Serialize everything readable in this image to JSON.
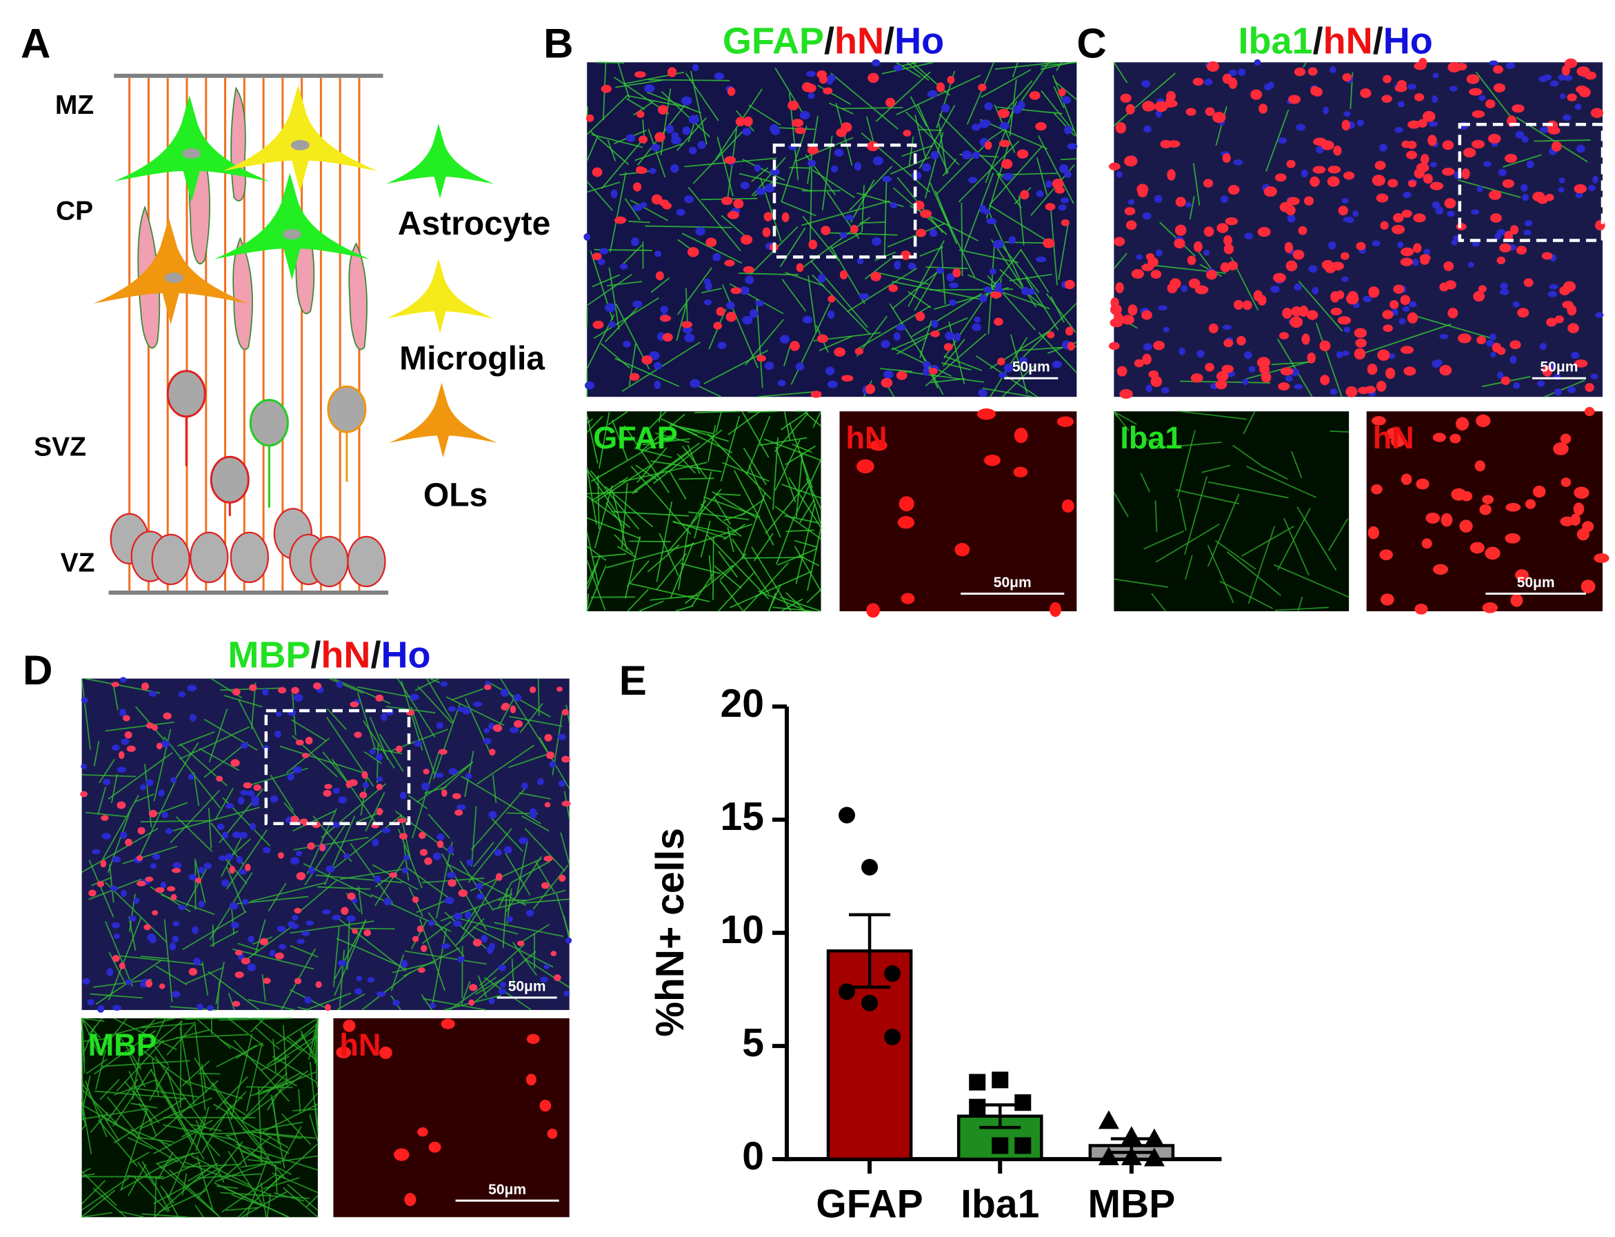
{
  "panel_labels": [
    "A",
    "B",
    "C",
    "D",
    "E"
  ],
  "diagram": {
    "zones": [
      "MZ",
      "CP",
      "SVZ",
      "VZ"
    ],
    "cell_types": [
      "Astrocyte",
      "Microglia",
      "OLs"
    ]
  },
  "title_colors": [
    "#22e022",
    "#111111",
    "#ee1111",
    "#111111",
    "#1111dd"
  ],
  "images": [
    {
      "title": [
        "GFAP",
        "/",
        "hN",
        "/",
        "Ho"
      ],
      "insets": [
        "GFAP",
        "hN"
      ],
      "scale_bars": [
        "50μm",
        "50μm"
      ]
    },
    {
      "title": [
        "Iba1",
        "/",
        "hN",
        "/",
        "Ho"
      ],
      "insets": [
        "Iba1",
        "hN"
      ],
      "scale_bars": [
        "50μm",
        "50μm"
      ]
    },
    {
      "title": [
        "MBP",
        "/",
        "hN",
        "/",
        "Ho"
      ],
      "insets": [
        "MBP",
        "hN"
      ],
      "scale_bars": [
        "50μm",
        "50μm"
      ]
    }
  ],
  "chart_data": {
    "type": "bar",
    "ylabel": "%hN+ cells",
    "categories": [
      "GFAP",
      "Iba1",
      "MBP"
    ],
    "values": [
      9.2,
      1.9,
      0.6
    ],
    "errors": [
      1.6,
      0.5,
      0.3
    ],
    "colors": [
      "#a50000",
      "#1e8c1e",
      "#9a9a9a"
    ],
    "points": [
      [
        15.2,
        12.9,
        8.2,
        7.4,
        6.9,
        5.4
      ],
      [
        3.4,
        3.5,
        2.5,
        2.3,
        0.6,
        0.6
      ],
      [
        1.7,
        1.0,
        0.9,
        0.1,
        0.1,
        0.05
      ]
    ],
    "markers": [
      "circle",
      "square",
      "triangle"
    ],
    "ylim": [
      0,
      20
    ],
    "yticks": [
      0,
      5,
      10,
      15,
      20
    ]
  }
}
